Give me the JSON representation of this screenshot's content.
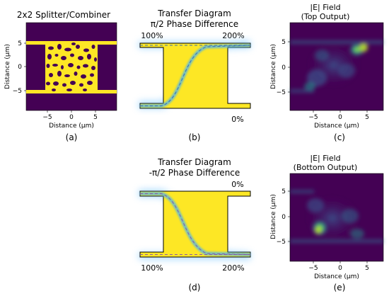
{
  "colors": {
    "viridis_dark": "#440154",
    "viridis_bright": "#fde725",
    "device_yellow": "#fde725",
    "path_blue": "#1f9bd8",
    "path_dash": "#3c6fb4",
    "glow": "#9bd3ff"
  },
  "panel_a": {
    "title": "2x2 Splitter/Combiner",
    "xlabel": "Distance (μm)",
    "ylabel": "Distance (μm)",
    "xticks": [
      "−5",
      "0",
      "5"
    ],
    "yticks": [
      "5",
      "0",
      "−5"
    ],
    "caption": "(a)"
  },
  "panel_b": {
    "title_line1": "Transfer Diagram",
    "title_line2": "π/2 Phase Difference",
    "top_left": "100%",
    "top_right": "200%",
    "bottom_right": "0%",
    "caption": "(b)"
  },
  "panel_c": {
    "title_line1": "|E| Field",
    "title_line2": "(Top Output)",
    "xlabel": "Distance (μm)",
    "ylabel": "Distance (μm)",
    "xticks": [
      "−5",
      "0",
      "5"
    ],
    "yticks": [
      "5",
      "0",
      "−5"
    ],
    "caption": "(c)"
  },
  "panel_d": {
    "title_line1": "Transfer Diagram",
    "title_line2": "-π/2 Phase Difference",
    "top_right": "0%",
    "bottom_left": "100%",
    "bottom_right": "200%",
    "caption": "(d)"
  },
  "panel_e": {
    "title_line1": "|E| Field",
    "title_line2": "(Bottom Output)",
    "xlabel": "Distance (μm)",
    "ylabel": "Distance (μm)",
    "xticks": [
      "−5",
      "0",
      "5"
    ],
    "yticks": [
      "5",
      "0",
      "−5"
    ],
    "caption": "(e)"
  }
}
